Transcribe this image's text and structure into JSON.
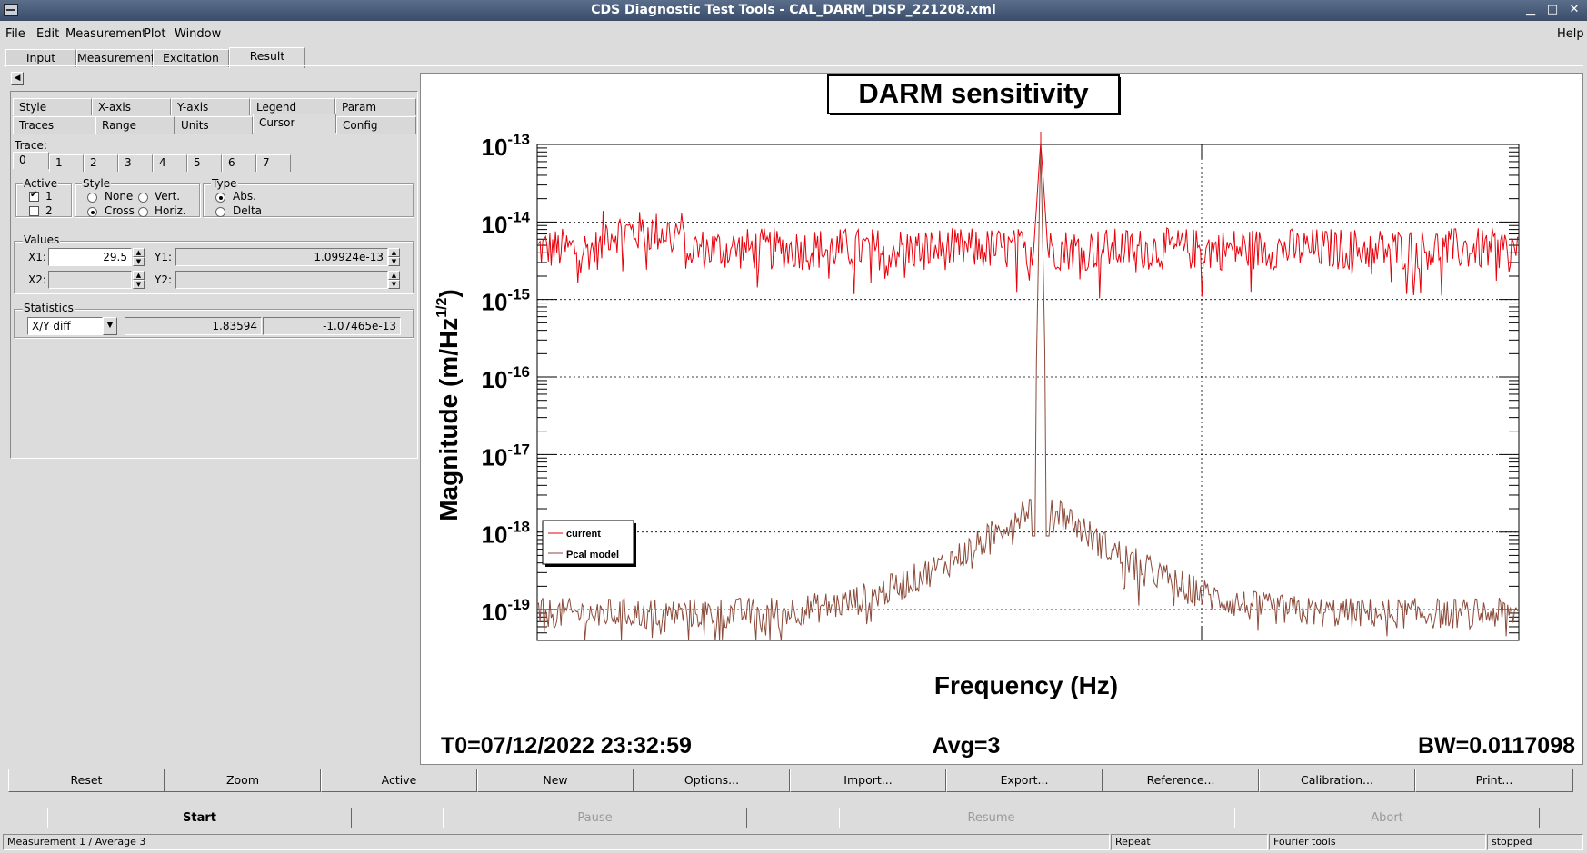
{
  "window": {
    "title": "CDS Diagnostic Test Tools - CAL_DARM_DISP_221208.xml"
  },
  "menu": {
    "file": "File",
    "edit": "Edit",
    "measurement": "Measurement",
    "plot": "Plot",
    "window": "Window",
    "help": "Help"
  },
  "tabs": [
    "Input",
    "Measurement",
    "Excitation",
    "Result"
  ],
  "subtabs_row1": [
    "Style",
    "X-axis",
    "Y-axis",
    "Legend",
    "Param"
  ],
  "subtabs_row2": [
    "Traces",
    "Range",
    "Units",
    "Cursor",
    "Config"
  ],
  "trace": {
    "label": "Trace:",
    "tabs": [
      "0",
      "1",
      "2",
      "3",
      "4",
      "5",
      "6",
      "7"
    ]
  },
  "active": {
    "label": "Active",
    "items": [
      "1",
      "2"
    ]
  },
  "style": {
    "label": "Style",
    "none": "None",
    "vert": "Vert.",
    "cross": "Cross",
    "horiz": "Horiz."
  },
  "type": {
    "label": "Type",
    "abs": "Abs.",
    "delta": "Delta"
  },
  "values": {
    "label": "Values",
    "x1_label": "X1:",
    "x1": "29.5",
    "y1_label": "Y1:",
    "y1": "1.09924e-13",
    "x2_label": "X2:",
    "y2_label": "Y2:"
  },
  "statistics": {
    "label": "Statistics",
    "mode": "X/Y diff",
    "val1": "1.83594",
    "val2": "-1.07465e-13"
  },
  "plot": {
    "title": "DARM sensitivity",
    "ylabel": "Magnitude (m/Hz",
    "ylabel_sup": "1/2",
    "ylabel_end": ")",
    "xlabel": "Frequency (Hz)",
    "t0": "T0=07/12/2022 23:32:59",
    "avg": "Avg=3",
    "bw": "BW=0.0117098",
    "legend_current": "current",
    "legend_pcal": "Pcal model",
    "colors": {
      "current": "#e8000b",
      "pcal": "#8b4a3a"
    }
  },
  "chart_data": {
    "type": "line",
    "title": "DARM sensitivity",
    "xlabel": "Frequency (Hz)",
    "ylabel": "Magnitude (m/Hz^1/2)",
    "yscale": "log",
    "ylim": [
      4e-20,
      1e-13
    ],
    "y_ticks": [
      "10^-13",
      "10^-14",
      "10^-15",
      "10^-16",
      "10^-17",
      "10^-18",
      "10^-19"
    ],
    "grid": true,
    "legend": "bottom-left",
    "series": [
      {
        "name": "current",
        "color": "#e8000b",
        "baseline": 4e-15,
        "peak": 1.1e-13
      },
      {
        "name": "Pcal model",
        "color": "#8b4a3a",
        "baseline": 1e-19,
        "peak": 1.1e-13
      }
    ]
  },
  "buttons": [
    "Reset",
    "Zoom",
    "Active",
    "New",
    "Options...",
    "Import...",
    "Export...",
    "Reference...",
    "Calibration...",
    "Print..."
  ],
  "run": {
    "start": "Start",
    "pause": "Pause",
    "resume": "Resume",
    "abort": "Abort"
  },
  "status": {
    "left": "Measurement 1 / Average 3",
    "repeat": "Repeat",
    "fourier": "Fourier tools",
    "state": "stopped"
  }
}
